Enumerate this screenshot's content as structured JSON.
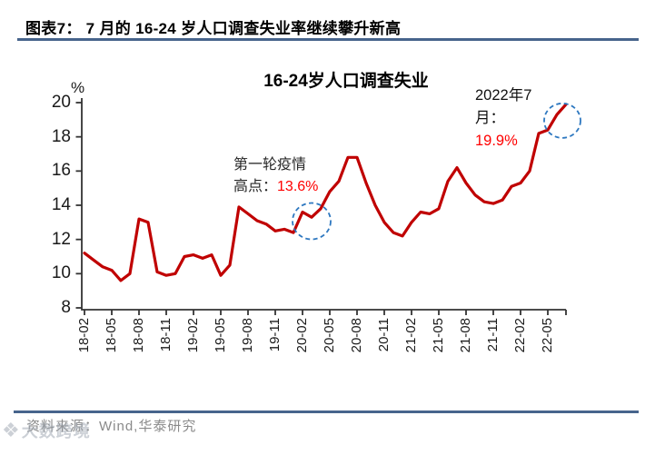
{
  "header": {
    "title": "图表7： 7 月的 16-24 岁人口调查失业率继续攀升新高"
  },
  "chart": {
    "title": "16-24岁人口调查失业",
    "y_unit": "%",
    "annotations": {
      "first_wave": {
        "l1": "第一轮疫情",
        "l2": "高点：",
        "value": "13.6%"
      },
      "latest": {
        "l1": "2022年7",
        "l2": "月：",
        "value": "19.9%"
      }
    }
  },
  "chart_data": {
    "type": "line",
    "title": "16-24岁人口调查失业",
    "ylabel": "%",
    "ylim": [
      8,
      20
    ],
    "yticks": [
      20,
      18,
      16,
      14,
      12,
      10,
      8
    ],
    "grid": false,
    "legend": "none",
    "x": [
      "18-02",
      "18-03",
      "18-04",
      "18-05",
      "18-06",
      "18-07",
      "18-08",
      "18-09",
      "18-10",
      "18-11",
      "18-12",
      "19-01",
      "19-02",
      "19-03",
      "19-04",
      "19-05",
      "19-06",
      "19-07",
      "19-08",
      "19-09",
      "19-10",
      "19-11",
      "19-12",
      "20-01",
      "20-02",
      "20-03",
      "20-04",
      "20-05",
      "20-06",
      "20-07",
      "20-08",
      "20-09",
      "20-10",
      "20-11",
      "20-12",
      "21-01",
      "21-02",
      "21-03",
      "21-04",
      "21-05",
      "21-06",
      "21-07",
      "21-08",
      "21-09",
      "21-10",
      "21-11",
      "21-12",
      "22-01",
      "22-02",
      "22-03",
      "22-04",
      "22-05",
      "22-06",
      "22-07"
    ],
    "xticks_shown": [
      "18-02",
      "18-05",
      "18-08",
      "18-11",
      "19-02",
      "19-05",
      "19-08",
      "19-11",
      "20-02",
      "20-05",
      "20-08",
      "20-11",
      "21-02",
      "21-05",
      "21-08",
      "21-11",
      "22-02",
      "22-05"
    ],
    "series": [
      {
        "name": "16-24岁人口调查失业率",
        "color": "#c00000",
        "values": [
          11.2,
          10.8,
          10.4,
          10.2,
          9.6,
          10.0,
          13.2,
          13.0,
          10.1,
          9.9,
          10.0,
          11.0,
          11.1,
          10.9,
          11.1,
          9.9,
          10.5,
          13.9,
          13.5,
          13.1,
          12.9,
          12.5,
          12.6,
          12.4,
          13.6,
          13.3,
          13.8,
          14.8,
          15.4,
          16.8,
          16.8,
          15.3,
          14.0,
          13.0,
          12.4,
          12.2,
          13.0,
          13.6,
          13.5,
          13.8,
          15.4,
          16.2,
          15.3,
          14.6,
          14.2,
          14.1,
          14.3,
          15.1,
          15.3,
          16.0,
          18.2,
          18.4,
          19.3,
          19.9
        ]
      }
    ],
    "annotations": [
      {
        "text": "第一轮疫情高点：13.6%",
        "target_x": "20-02",
        "target_y": 13.6
      },
      {
        "text": "2022年7月：19.9%",
        "target_x": "22-07",
        "target_y": 19.9
      }
    ],
    "circled_points": [
      "20-02",
      "22-07"
    ]
  },
  "footer": {
    "source": "资料来源：Wind,华泰研究",
    "watermark_icon": "watermark-logo-icon",
    "watermark": "大数跨境"
  },
  "colors": {
    "line": "#c00000",
    "annotation_value": "#ff0000",
    "circle": "#2e78c0",
    "rule": "#47648c",
    "axis": "#333333",
    "source_text": "#8a8a8a"
  }
}
